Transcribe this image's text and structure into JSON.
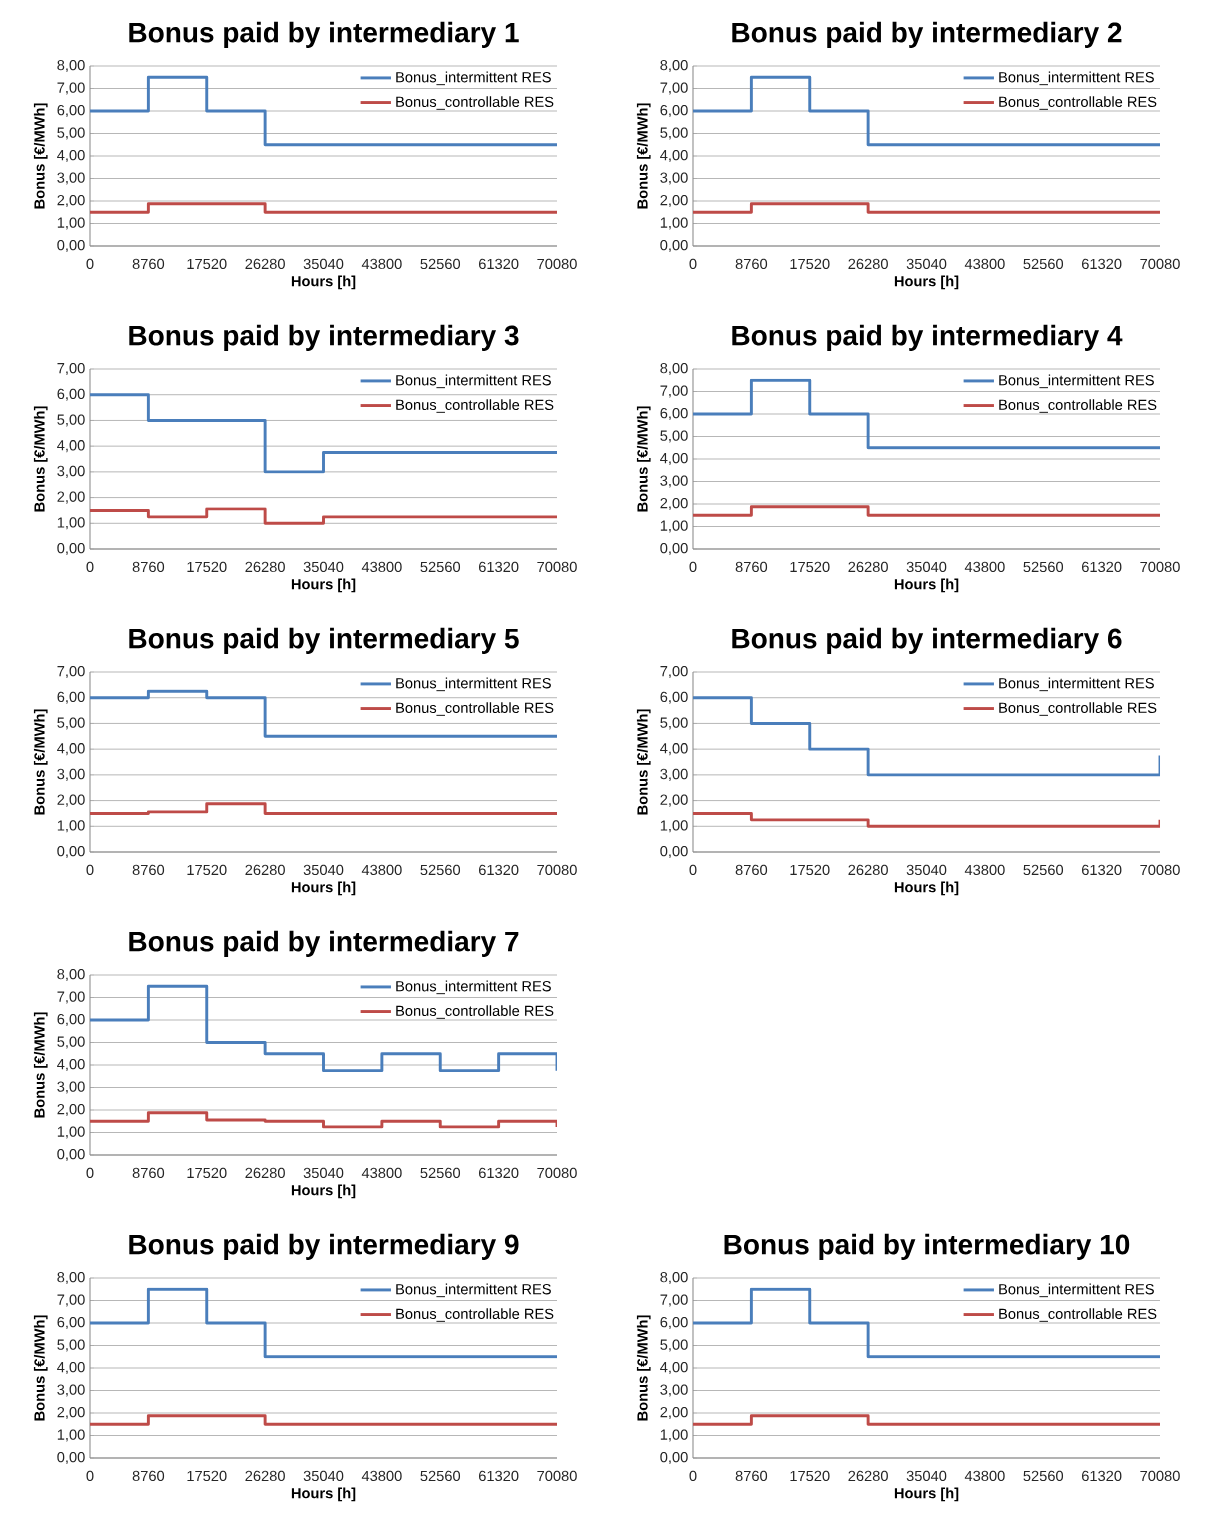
{
  "chart_data": [
    {
      "type": "step",
      "title": "Bonus paid by intermediary 1",
      "xlabel": "Hours [h]",
      "ylabel": "Bonus [€/MWh]",
      "x": [
        0,
        8760,
        17520,
        26280,
        35040,
        43800,
        52560,
        61320,
        70080
      ],
      "xlim": [
        0,
        70080
      ],
      "xticks": [
        0,
        8760,
        17520,
        26280,
        35040,
        43800,
        52560,
        61320,
        70080
      ],
      "ylim": [
        0,
        8
      ],
      "yticks": [
        {
          "value": 0,
          "label": "0,00"
        },
        {
          "value": 1,
          "label": "1,00"
        },
        {
          "value": 2,
          "label": "2,00"
        },
        {
          "value": 3,
          "label": "3,00"
        },
        {
          "value": 4,
          "label": "4,00"
        },
        {
          "value": 5,
          "label": "5,00"
        },
        {
          "value": 6,
          "label": "6,00"
        },
        {
          "value": 7,
          "label": "7,00"
        },
        {
          "value": 8,
          "label": "8,00"
        }
      ],
      "grid": "y",
      "legend": "top right",
      "series": [
        {
          "name": "Bonus_intermittent RES",
          "color": "#4a7ebb",
          "values": [
            6,
            7.5,
            6,
            4.5,
            4.5,
            4.5,
            4.5,
            4.5,
            4.5
          ]
        },
        {
          "name": "Bonus_controllable RES",
          "color": "#be4b48",
          "values": [
            1.5,
            1.88,
            1.88,
            1.5,
            1.5,
            1.5,
            1.5,
            1.5,
            1.5
          ]
        }
      ]
    },
    {
      "type": "step",
      "title": "Bonus paid by intermediary 2",
      "xlabel": "Hours [h]",
      "ylabel": "Bonus [€/MWh]",
      "x": [
        0,
        8760,
        17520,
        26280,
        35040,
        43800,
        52560,
        61320,
        70080
      ],
      "xlim": [
        0,
        70080
      ],
      "xticks": [
        0,
        8760,
        17520,
        26280,
        35040,
        43800,
        52560,
        61320,
        70080
      ],
      "ylim": [
        0,
        8
      ],
      "yticks": [
        {
          "value": 0,
          "label": "0,00"
        },
        {
          "value": 1,
          "label": "1,00"
        },
        {
          "value": 2,
          "label": "2,00"
        },
        {
          "value": 3,
          "label": "3,00"
        },
        {
          "value": 4,
          "label": "4,00"
        },
        {
          "value": 5,
          "label": "5,00"
        },
        {
          "value": 6,
          "label": "6,00"
        },
        {
          "value": 7,
          "label": "7,00"
        },
        {
          "value": 8,
          "label": "8,00"
        }
      ],
      "grid": "y",
      "legend": "top right",
      "series": [
        {
          "name": "Bonus_intermittent RES",
          "color": "#4a7ebb",
          "values": [
            6,
            7.5,
            6,
            4.5,
            4.5,
            4.5,
            4.5,
            4.5,
            4.5
          ]
        },
        {
          "name": "Bonus_controllable RES",
          "color": "#be4b48",
          "values": [
            1.5,
            1.88,
            1.88,
            1.5,
            1.5,
            1.5,
            1.5,
            1.5,
            1.5
          ]
        }
      ]
    },
    {
      "type": "step",
      "title": "Bonus paid by intermediary 3",
      "xlabel": "Hours [h]",
      "ylabel": "Bonus [€/MWh]",
      "x": [
        0,
        8760,
        17520,
        26280,
        35040,
        43800,
        52560,
        61320,
        70080
      ],
      "xlim": [
        0,
        70080
      ],
      "xticks": [
        0,
        8760,
        17520,
        26280,
        35040,
        43800,
        52560,
        61320,
        70080
      ],
      "ylim": [
        0,
        7
      ],
      "yticks": [
        {
          "value": 0,
          "label": "0,00"
        },
        {
          "value": 1,
          "label": "1,00"
        },
        {
          "value": 2,
          "label": "2,00"
        },
        {
          "value": 3,
          "label": "3,00"
        },
        {
          "value": 4,
          "label": "4,00"
        },
        {
          "value": 5,
          "label": "5,00"
        },
        {
          "value": 6,
          "label": "6,00"
        },
        {
          "value": 7,
          "label": "7,00"
        }
      ],
      "grid": "y",
      "legend": "top right",
      "series": [
        {
          "name": "Bonus_intermittent RES",
          "color": "#4a7ebb",
          "values": [
            6,
            5,
            5,
            3,
            3.75,
            3.75,
            3.75,
            3.75,
            3.75
          ]
        },
        {
          "name": "Bonus_controllable RES",
          "color": "#be4b48",
          "values": [
            1.5,
            1.25,
            1.56,
            1,
            1.25,
            1.25,
            1.25,
            1.25,
            1.25
          ]
        }
      ]
    },
    {
      "type": "step",
      "title": "Bonus paid by intermediary 4",
      "xlabel": "Hours [h]",
      "ylabel": "Bonus [€/MWh]",
      "x": [
        0,
        8760,
        17520,
        26280,
        35040,
        43800,
        52560,
        61320,
        70080
      ],
      "xlim": [
        0,
        70080
      ],
      "xticks": [
        0,
        8760,
        17520,
        26280,
        35040,
        43800,
        52560,
        61320,
        70080
      ],
      "ylim": [
        0,
        8
      ],
      "yticks": [
        {
          "value": 0,
          "label": "0,00"
        },
        {
          "value": 1,
          "label": "1,00"
        },
        {
          "value": 2,
          "label": "2,00"
        },
        {
          "value": 3,
          "label": "3,00"
        },
        {
          "value": 4,
          "label": "4,00"
        },
        {
          "value": 5,
          "label": "5,00"
        },
        {
          "value": 6,
          "label": "6,00"
        },
        {
          "value": 7,
          "label": "7,00"
        },
        {
          "value": 8,
          "label": "8,00"
        }
      ],
      "grid": "y",
      "legend": "top right",
      "series": [
        {
          "name": "Bonus_intermittent RES",
          "color": "#4a7ebb",
          "values": [
            6,
            7.5,
            6,
            4.5,
            4.5,
            4.5,
            4.5,
            4.5,
            4.5
          ]
        },
        {
          "name": "Bonus_controllable RES",
          "color": "#be4b48",
          "values": [
            1.5,
            1.88,
            1.88,
            1.5,
            1.5,
            1.5,
            1.5,
            1.5,
            1.5
          ]
        }
      ]
    },
    {
      "type": "step",
      "title": "Bonus paid by intermediary 5",
      "xlabel": "Hours [h]",
      "ylabel": "Bonus [€/MWh]",
      "x": [
        0,
        8760,
        17520,
        26280,
        35040,
        43800,
        52560,
        61320,
        70080
      ],
      "xlim": [
        0,
        70080
      ],
      "xticks": [
        0,
        8760,
        17520,
        26280,
        35040,
        43800,
        52560,
        61320,
        70080
      ],
      "ylim": [
        0,
        7
      ],
      "yticks": [
        {
          "value": 0,
          "label": "0,00"
        },
        {
          "value": 1,
          "label": "1,00"
        },
        {
          "value": 2,
          "label": "2,00"
        },
        {
          "value": 3,
          "label": "3,00"
        },
        {
          "value": 4,
          "label": "4,00"
        },
        {
          "value": 5,
          "label": "5,00"
        },
        {
          "value": 6,
          "label": "6,00"
        },
        {
          "value": 7,
          "label": "7,00"
        }
      ],
      "grid": "y",
      "legend": "top right",
      "series": [
        {
          "name": "Bonus_intermittent RES",
          "color": "#4a7ebb",
          "values": [
            6,
            6.25,
            6,
            4.5,
            4.5,
            4.5,
            4.5,
            4.5,
            4.5
          ]
        },
        {
          "name": "Bonus_controllable RES",
          "color": "#be4b48",
          "values": [
            1.5,
            1.56,
            1.88,
            1.5,
            1.5,
            1.5,
            1.5,
            1.5,
            1.5
          ]
        }
      ]
    },
    {
      "type": "step",
      "title": "Bonus paid by intermediary 6",
      "xlabel": "Hours [h]",
      "ylabel": "Bonus [€/MWh]",
      "x": [
        0,
        8760,
        17520,
        26280,
        35040,
        43800,
        52560,
        61320,
        70080
      ],
      "xlim": [
        0,
        70080
      ],
      "xticks": [
        0,
        8760,
        17520,
        26280,
        35040,
        43800,
        52560,
        61320,
        70080
      ],
      "ylim": [
        0,
        7
      ],
      "yticks": [
        {
          "value": 0,
          "label": "0,00"
        },
        {
          "value": 1,
          "label": "1,00"
        },
        {
          "value": 2,
          "label": "2,00"
        },
        {
          "value": 3,
          "label": "3,00"
        },
        {
          "value": 4,
          "label": "4,00"
        },
        {
          "value": 5,
          "label": "5,00"
        },
        {
          "value": 6,
          "label": "6,00"
        },
        {
          "value": 7,
          "label": "7,00"
        }
      ],
      "grid": "y",
      "legend": "top right",
      "series": [
        {
          "name": "Bonus_intermittent RES",
          "color": "#4a7ebb",
          "values": [
            6,
            5,
            4,
            3,
            3,
            3,
            3,
            3,
            3.75
          ]
        },
        {
          "name": "Bonus_controllable RES",
          "color": "#be4b48",
          "values": [
            1.5,
            1.25,
            1.25,
            1,
            1,
            1,
            1,
            1,
            1.25
          ]
        }
      ]
    },
    {
      "type": "step",
      "title": "Bonus paid by intermediary 7",
      "xlabel": "Hours [h]",
      "ylabel": "Bonus [€/MWh]",
      "x": [
        0,
        8760,
        17520,
        26280,
        35040,
        43800,
        52560,
        61320,
        70080
      ],
      "xlim": [
        0,
        70080
      ],
      "xticks": [
        0,
        8760,
        17520,
        26280,
        35040,
        43800,
        52560,
        61320,
        70080
      ],
      "ylim": [
        0,
        8
      ],
      "yticks": [
        {
          "value": 0,
          "label": "0,00"
        },
        {
          "value": 1,
          "label": "1,00"
        },
        {
          "value": 2,
          "label": "2,00"
        },
        {
          "value": 3,
          "label": "3,00"
        },
        {
          "value": 4,
          "label": "4,00"
        },
        {
          "value": 5,
          "label": "5,00"
        },
        {
          "value": 6,
          "label": "6,00"
        },
        {
          "value": 7,
          "label": "7,00"
        },
        {
          "value": 8,
          "label": "8,00"
        }
      ],
      "grid": "y",
      "legend": "top right",
      "series": [
        {
          "name": "Bonus_intermittent RES",
          "color": "#4a7ebb",
          "values": [
            6,
            7.5,
            5,
            4.5,
            3.75,
            4.5,
            3.75,
            4.5,
            3.75
          ]
        },
        {
          "name": "Bonus_controllable RES",
          "color": "#be4b48",
          "values": [
            1.5,
            1.88,
            1.56,
            1.5,
            1.25,
            1.5,
            1.25,
            1.5,
            1.25
          ]
        }
      ]
    },
    {
      "type": "step",
      "title": "Bonus paid by intermediary 9",
      "xlabel": "Hours [h]",
      "ylabel": "Bonus [€/MWh]",
      "x": [
        0,
        8760,
        17520,
        26280,
        35040,
        43800,
        52560,
        61320,
        70080
      ],
      "xlim": [
        0,
        70080
      ],
      "xticks": [
        0,
        8760,
        17520,
        26280,
        35040,
        43800,
        52560,
        61320,
        70080
      ],
      "ylim": [
        0,
        8
      ],
      "yticks": [
        {
          "value": 0,
          "label": "0,00"
        },
        {
          "value": 1,
          "label": "1,00"
        },
        {
          "value": 2,
          "label": "2,00"
        },
        {
          "value": 3,
          "label": "3,00"
        },
        {
          "value": 4,
          "label": "4,00"
        },
        {
          "value": 5,
          "label": "5,00"
        },
        {
          "value": 6,
          "label": "6,00"
        },
        {
          "value": 7,
          "label": "7,00"
        },
        {
          "value": 8,
          "label": "8,00"
        }
      ],
      "grid": "y",
      "legend": "top right",
      "series": [
        {
          "name": "Bonus_intermittent RES",
          "color": "#4a7ebb",
          "values": [
            6,
            7.5,
            6,
            4.5,
            4.5,
            4.5,
            4.5,
            4.5,
            4.5
          ]
        },
        {
          "name": "Bonus_controllable RES",
          "color": "#be4b48",
          "values": [
            1.5,
            1.88,
            1.88,
            1.5,
            1.5,
            1.5,
            1.5,
            1.5,
            1.5
          ]
        }
      ]
    },
    {
      "type": "step",
      "title": "Bonus paid by intermediary 10",
      "xlabel": "Hours [h]",
      "ylabel": "Bonus [€/MWh]",
      "x": [
        0,
        8760,
        17520,
        26280,
        35040,
        43800,
        52560,
        61320,
        70080
      ],
      "xlim": [
        0,
        70080
      ],
      "xticks": [
        0,
        8760,
        17520,
        26280,
        35040,
        43800,
        52560,
        61320,
        70080
      ],
      "ylim": [
        0,
        8
      ],
      "yticks": [
        {
          "value": 0,
          "label": "0,00"
        },
        {
          "value": 1,
          "label": "1,00"
        },
        {
          "value": 2,
          "label": "2,00"
        },
        {
          "value": 3,
          "label": "3,00"
        },
        {
          "value": 4,
          "label": "4,00"
        },
        {
          "value": 5,
          "label": "5,00"
        },
        {
          "value": 6,
          "label": "6,00"
        },
        {
          "value": 7,
          "label": "7,00"
        },
        {
          "value": 8,
          "label": "8,00"
        }
      ],
      "grid": "y",
      "legend": "top right",
      "series": [
        {
          "name": "Bonus_intermittent RES",
          "color": "#4a7ebb",
          "values": [
            6,
            7.5,
            6,
            4.5,
            4.5,
            4.5,
            4.5,
            4.5,
            4.5
          ]
        },
        {
          "name": "Bonus_controllable RES",
          "color": "#be4b48",
          "values": [
            1.5,
            1.88,
            1.88,
            1.5,
            1.5,
            1.5,
            1.5,
            1.5,
            1.5
          ]
        }
      ]
    }
  ]
}
